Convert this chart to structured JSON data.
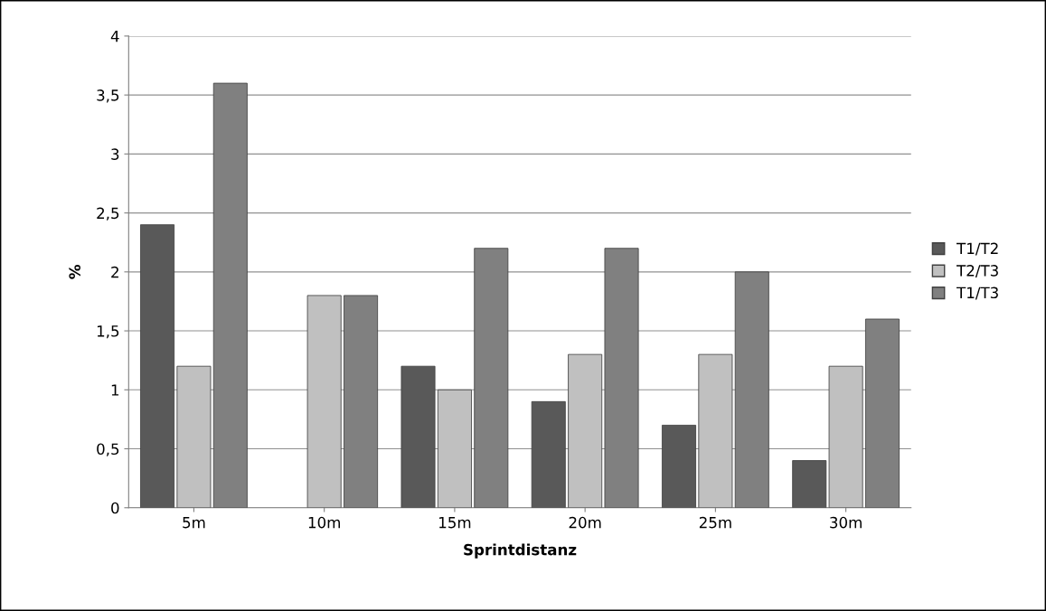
{
  "chart_data": {
    "type": "bar",
    "xlabel": "Sprintdistanz",
    "ylabel": "%",
    "categories": [
      "5m",
      "10m",
      "15m",
      "20m",
      "25m",
      "30m"
    ],
    "series": [
      {
        "name": "T1/T2",
        "color": "#595959",
        "values": [
          2.4,
          null,
          1.2,
          0.9,
          0.7,
          0.4
        ]
      },
      {
        "name": "T2/T3",
        "color": "#c0c0c0",
        "values": [
          1.2,
          1.8,
          1.0,
          1.3,
          1.3,
          1.2
        ]
      },
      {
        "name": "T1/T3",
        "color": "#808080",
        "values": [
          3.6,
          1.8,
          2.2,
          2.2,
          2.0,
          1.6
        ]
      }
    ],
    "ylim": [
      0,
      4
    ],
    "yticks": [
      0,
      {
        "value": 0.5,
        "label": "0,5"
      },
      1,
      {
        "value": 1.5,
        "label": "1,5"
      },
      2,
      {
        "value": 2.5,
        "label": "2,5"
      },
      3,
      {
        "value": 3.5,
        "label": "3,5"
      },
      4
    ],
    "grid": "y",
    "legend": "right"
  }
}
